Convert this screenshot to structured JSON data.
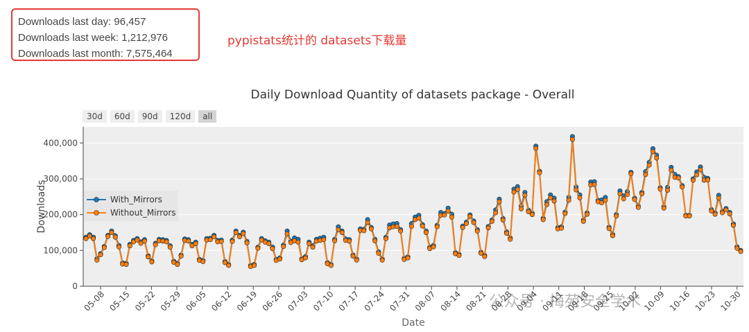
{
  "stats": {
    "day": "Downloads last day: 96,457",
    "week": "Downloads last week: 1,212,976",
    "month": "Downloads last month: 7,575,464"
  },
  "annotation": "pypistats统计的 datasets下载量",
  "watermark": "公众号 · 梅苑安全学术",
  "range_buttons": [
    "30d",
    "60d",
    "90d",
    "120d",
    "all"
  ],
  "colors": {
    "with_mirrors": "#1f77b4",
    "without_mirrors": "#ff7f0e",
    "stats_border": "#e53935",
    "annotation": "#e53935"
  },
  "chart_data": {
    "type": "line",
    "title": "Daily Download Quantity of datasets package - Overall",
    "xlabel": "Date",
    "ylabel": "Downloads",
    "ylim": [
      0,
      445000
    ],
    "yticks": [
      0,
      100000,
      200000,
      300000,
      400000
    ],
    "ytick_labels": [
      "0",
      "100,000",
      "200,000",
      "300,000",
      "400,000"
    ],
    "x_start": "05-04",
    "x_end": "10-31",
    "xticks": [
      "05-08",
      "05-15",
      "05-22",
      "05-29",
      "06-05",
      "06-12",
      "06-19",
      "06-26",
      "07-03",
      "07-10",
      "07-17",
      "07-24",
      "07-31",
      "08-07",
      "08-14",
      "08-21",
      "08-28",
      "09-04",
      "09-11",
      "09-18",
      "09-25",
      "10-02",
      "10-09",
      "10-16",
      "10-23",
      "10-30"
    ],
    "legend": "left-middle",
    "grid": true,
    "series": [
      {
        "name": "With_Mirrors",
        "values": [
          137000,
          144000,
          137000,
          77000,
          91000,
          111000,
          142000,
          154000,
          141000,
          114000,
          65000,
          64000,
          117000,
          128000,
          133000,
          124000,
          130000,
          85000,
          71000,
          120000,
          131000,
          130000,
          128000,
          113000,
          70000,
          64000,
          87000,
          132000,
          130000,
          117000,
          123000,
          75000,
          72000,
          133000,
          134000,
          142000,
          128000,
          129000,
          69000,
          61000,
          129000,
          154000,
          142000,
          151000,
          125000,
          58000,
          61000,
          109000,
          133000,
          127000,
          123000,
          109000,
          75000,
          79000,
          115000,
          154000,
          126000,
          135000,
          131000,
          77000,
          83000,
          123000,
          113000,
          131000,
          134000,
          137000,
          66000,
          61000,
          131000,
          166000,
          154000,
          132000,
          130000,
          87000,
          76000,
          160000,
          159000,
          186000,
          164000,
          131000,
          96000,
          76000,
          137000,
          171000,
          174000,
          175000,
          158000,
          78000,
          82000,
          175000,
          193000,
          198000,
          172000,
          154000,
          109000,
          114000,
          170000,
          206000,
          203000,
          218000,
          201000,
          94000,
          89000,
          168000,
          179000,
          199000,
          182000,
          158000,
          95000,
          86000,
          167000,
          185000,
          213000,
          243000,
          189000,
          152000,
          135000,
          271000,
          278000,
          224000,
          262000,
          212000,
          204000,
          391000,
          321000,
          190000,
          236000,
          255000,
          246000,
          164000,
          166000,
          207000,
          248000,
          418000,
          277000,
          255000,
          185000,
          205000,
          291000,
          292000,
          240000,
          241000,
          248000,
          165000,
          145000,
          200000,
          266000,
          252000,
          264000,
          318000,
          246000,
          224000,
          262000,
          320000,
          346000,
          384000,
          366000,
          275000,
          222000,
          276000,
          332000,
          312000,
          306000,
          281000,
          198000,
          198000,
          300000,
          319000,
          333000,
          304000,
          301000,
          214000,
          205000,
          254000,
          209000,
          217000,
          206000,
          174000,
          110000,
          100000
        ],
        "offsets": [
          0,
          0,
          0,
          0,
          0,
          0,
          0,
          0,
          0,
          0,
          0,
          0,
          0,
          0,
          0,
          0,
          0,
          0,
          0,
          0,
          0,
          0,
          0,
          0,
          0,
          0,
          0,
          0,
          0,
          0,
          0,
          0,
          0,
          0,
          0,
          0,
          0,
          0,
          0,
          0,
          0,
          0,
          0,
          0,
          0,
          0,
          0,
          0,
          0,
          0,
          0,
          0,
          0,
          0,
          0,
          0,
          0,
          0,
          0,
          0,
          0,
          0,
          0,
          0,
          0,
          0,
          0,
          0,
          0,
          0,
          0,
          0,
          0,
          0,
          0,
          0,
          0,
          0,
          0,
          0,
          0,
          0,
          0,
          0,
          0,
          0,
          0,
          0,
          0,
          0,
          0,
          0,
          0,
          0,
          0,
          0,
          0,
          0,
          0,
          0,
          0,
          0,
          0,
          0,
          0,
          0,
          0,
          0,
          0,
          0,
          0,
          0,
          0,
          0,
          0,
          0,
          0,
          0,
          0,
          0,
          0,
          0,
          0,
          0,
          0,
          0,
          0,
          0,
          0,
          0,
          0,
          0,
          0,
          0,
          0,
          0,
          0,
          0,
          0,
          0,
          0,
          0,
          0,
          0,
          0,
          0,
          0,
          0,
          0,
          0,
          0,
          0,
          0,
          0,
          0,
          0,
          0,
          0,
          0,
          0,
          0,
          0,
          0,
          0,
          0,
          0,
          0,
          0,
          0,
          0,
          0,
          0,
          0,
          0,
          0,
          0,
          0,
          0,
          0,
          0,
          0
        ]
      },
      {
        "name": "Without_Mirrors",
        "values": [
          133000,
          140000,
          133000,
          73000,
          88000,
          108000,
          139000,
          150000,
          137000,
          110000,
          62000,
          61000,
          113000,
          124000,
          129000,
          120000,
          126000,
          82000,
          68000,
          116000,
          127000,
          126000,
          124000,
          109000,
          67000,
          61000,
          84000,
          128000,
          126000,
          113000,
          119000,
          72000,
          69000,
          129000,
          130000,
          138000,
          124000,
          125000,
          66000,
          58000,
          125000,
          150000,
          138000,
          147000,
          121000,
          55000,
          58000,
          106000,
          129000,
          123000,
          119000,
          105000,
          72000,
          76000,
          111000,
          146000,
          122000,
          127000,
          123000,
          74000,
          79000,
          119000,
          109000,
          126000,
          128000,
          130000,
          63000,
          58000,
          127000,
          158000,
          150000,
          128000,
          126000,
          84000,
          73000,
          156000,
          155000,
          178000,
          160000,
          127000,
          92000,
          73000,
          133000,
          163000,
          166000,
          167000,
          154000,
          75000,
          79000,
          167000,
          186000,
          190000,
          168000,
          150000,
          105000,
          110000,
          166000,
          198000,
          199000,
          210000,
          193000,
          91000,
          86000,
          164000,
          175000,
          195000,
          178000,
          154000,
          92000,
          83000,
          163000,
          181000,
          205000,
          236000,
          185000,
          148000,
          131000,
          263000,
          270000,
          216000,
          254000,
          208000,
          200000,
          385000,
          317000,
          186000,
          228000,
          247000,
          238000,
          160000,
          162000,
          203000,
          240000,
          410000,
          269000,
          247000,
          181000,
          201000,
          283000,
          284000,
          236000,
          233000,
          240000,
          161000,
          141000,
          196000,
          258000,
          244000,
          256000,
          314000,
          242000,
          220000,
          258000,
          312000,
          338000,
          376000,
          358000,
          271000,
          218000,
          268000,
          324000,
          304000,
          302000,
          277000,
          196000,
          196000,
          296000,
          311000,
          325000,
          296000,
          297000,
          210000,
          201000,
          246000,
          205000,
          213000,
          202000,
          170000,
          106000,
          97000
        ]
      }
    ]
  }
}
